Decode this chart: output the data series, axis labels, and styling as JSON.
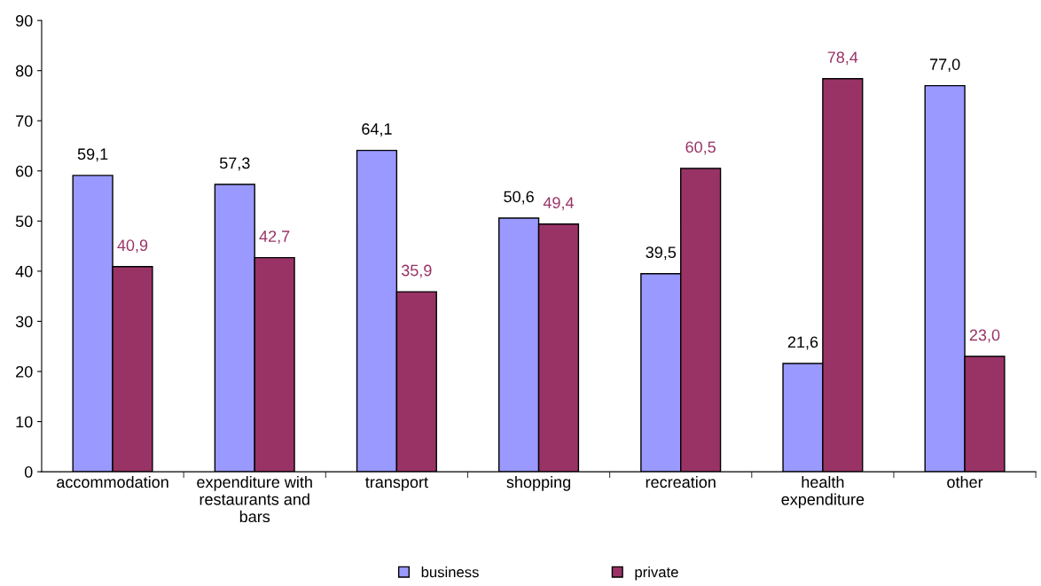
{
  "chart_data": {
    "type": "bar",
    "categories": [
      "accommodation",
      "expenditure with\nrestaurants and\nbars",
      "transport",
      "shopping",
      "recreation",
      "health\nexpenditure",
      "other"
    ],
    "series": [
      {
        "name": "business",
        "color": "#9999ff",
        "values": [
          59.1,
          57.3,
          64.1,
          50.6,
          39.5,
          21.6,
          77.0
        ],
        "value_labels": [
          "59,1",
          "57,3",
          "64,1",
          "50,6",
          "39,5",
          "21,6",
          "77,0"
        ]
      },
      {
        "name": "private",
        "color": "#993366",
        "values": [
          40.9,
          42.7,
          35.9,
          49.4,
          60.5,
          78.4,
          23.0
        ],
        "value_labels": [
          "40,9",
          "42,7",
          "35,9",
          "49,4",
          "60,5",
          "78,4",
          "23,0"
        ]
      }
    ],
    "ylim": [
      0,
      90
    ],
    "yticks": [
      0,
      10,
      20,
      30,
      40,
      50,
      60,
      70,
      80,
      90
    ],
    "grid": false,
    "legend": "bottom"
  }
}
